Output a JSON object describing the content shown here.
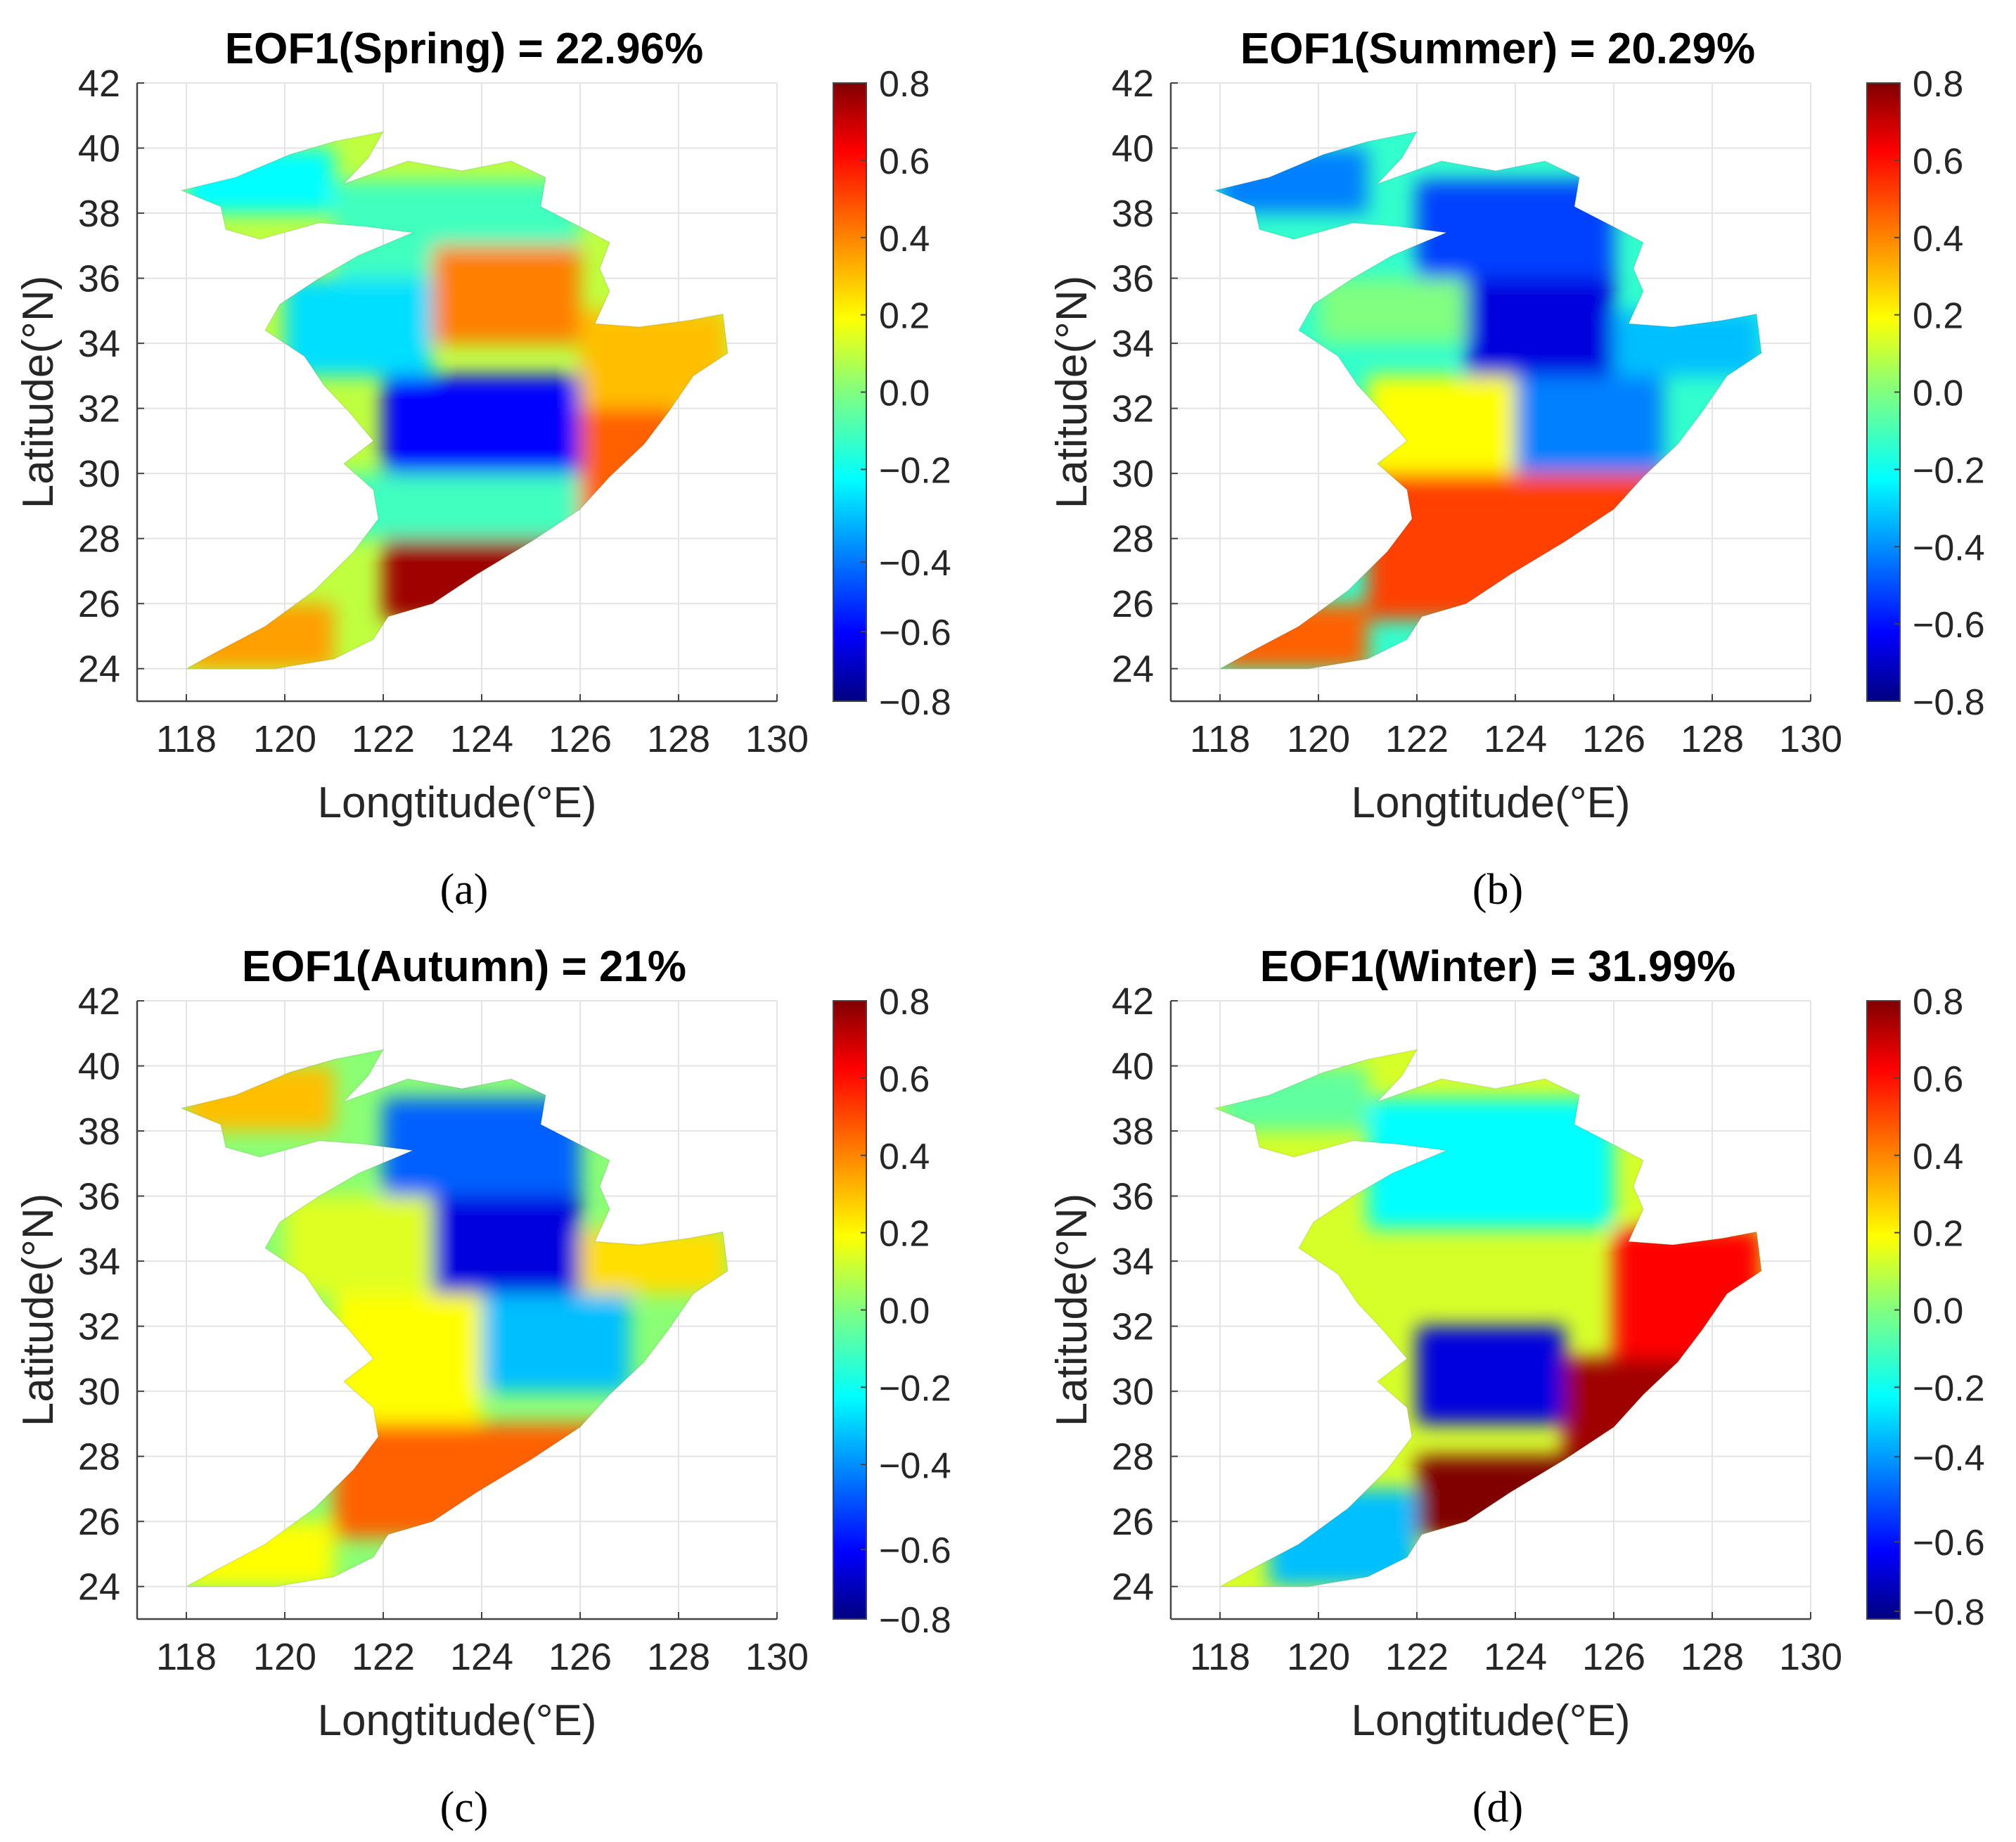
{
  "figure": {
    "panels": [
      {
        "id": "a",
        "label": "(a)",
        "season": "Spring",
        "title": "EOF1(Spring) = 22.96%",
        "colorbar_ticks": [
          "0.8",
          "0.6",
          "0.4",
          "0.2",
          "0.0",
          "−0.2",
          "−0.4",
          "−0.6",
          "−0.8"
        ],
        "colorbar_tick_values": [
          0.8,
          0.6,
          0.4,
          0.2,
          0.0,
          -0.2,
          -0.44,
          -0.62,
          -0.82
        ],
        "regions": [
          {
            "lon": [
              118,
              121
            ],
            "lat": [
              38,
              40
            ],
            "v": -0.2
          },
          {
            "lon": [
              121,
              126
            ],
            "lat": [
              36,
              39
            ],
            "v": -0.1
          },
          {
            "lon": [
              120,
              123
            ],
            "lat": [
              33,
              36
            ],
            "v": -0.25
          },
          {
            "lon": [
              123,
              126
            ],
            "lat": [
              34,
              37
            ],
            "v": 0.4
          },
          {
            "lon": [
              126,
              129
            ],
            "lat": [
              32,
              35
            ],
            "v": 0.3
          },
          {
            "lon": [
              122,
              126
            ],
            "lat": [
              30,
              33
            ],
            "v": -0.6
          },
          {
            "lon": [
              121,
              126
            ],
            "lat": [
              28,
              30
            ],
            "v": -0.1
          },
          {
            "lon": [
              126,
              128
            ],
            "lat": [
              28,
              32
            ],
            "v": 0.45
          },
          {
            "lon": [
              122,
              126
            ],
            "lat": [
              25.5,
              28
            ],
            "v": 0.75
          },
          {
            "lon": [
              118,
              121
            ],
            "lat": [
              24,
              26
            ],
            "v": 0.35
          }
        ]
      },
      {
        "id": "b",
        "label": "(b)",
        "season": "Summer",
        "title": "EOF1(Summer) = 20.29%",
        "colorbar_ticks": [
          "0.8",
          "0.6",
          "0.4",
          "0.2",
          "0.0",
          "−0.2",
          "−0.4",
          "−0.6",
          "−0.8"
        ],
        "colorbar_tick_values": [
          0.8,
          0.6,
          0.4,
          0.2,
          0.0,
          -0.2,
          -0.4,
          -0.6,
          -0.8
        ],
        "regions": [
          {
            "lon": [
              118,
              121
            ],
            "lat": [
              38,
              40
            ],
            "v": -0.4
          },
          {
            "lon": [
              122,
              126
            ],
            "lat": [
              36,
              39
            ],
            "v": -0.5
          },
          {
            "lon": [
              120,
              123
            ],
            "lat": [
              34,
              36
            ],
            "v": 0.0
          },
          {
            "lon": [
              123,
              126
            ],
            "lat": [
              32,
              36
            ],
            "v": -0.65
          },
          {
            "lon": [
              126,
              129
            ],
            "lat": [
              33,
              35
            ],
            "v": -0.3
          },
          {
            "lon": [
              121,
              124
            ],
            "lat": [
              30,
              33
            ],
            "v": 0.2
          },
          {
            "lon": [
              124,
              127
            ],
            "lat": [
              30,
              33
            ],
            "v": -0.4
          },
          {
            "lon": [
              121,
              128
            ],
            "lat": [
              25.5,
              30
            ],
            "v": 0.5
          },
          {
            "lon": [
              118,
              121
            ],
            "lat": [
              24,
              26
            ],
            "v": 0.45
          }
        ]
      },
      {
        "id": "c",
        "label": "(c)",
        "season": "Autumn",
        "title": "EOF1(Autumn) = 21%",
        "colorbar_ticks": [
          "0.8",
          "0.6",
          "0.4",
          "0.2",
          "0.0",
          "−0.2",
          "−0.4",
          "−0.6",
          "−0.8"
        ],
        "colorbar_tick_values": [
          0.8,
          0.6,
          0.4,
          0.2,
          0.0,
          -0.2,
          -0.4,
          -0.62,
          -0.8
        ],
        "regions": [
          {
            "lon": [
              118,
              121
            ],
            "lat": [
              38,
              40
            ],
            "v": 0.3
          },
          {
            "lon": [
              122,
              126
            ],
            "lat": [
              36,
              39
            ],
            "v": -0.45
          },
          {
            "lon": [
              120,
              123
            ],
            "lat": [
              33,
              36
            ],
            "v": 0.15
          },
          {
            "lon": [
              123,
              126
            ],
            "lat": [
              33,
              36
            ],
            "v": -0.65
          },
          {
            "lon": [
              126,
              129
            ],
            "lat": [
              33,
              35
            ],
            "v": 0.25
          },
          {
            "lon": [
              121,
              124
            ],
            "lat": [
              29,
              33
            ],
            "v": 0.2
          },
          {
            "lon": [
              124,
              127
            ],
            "lat": [
              30,
              33
            ],
            "v": -0.3
          },
          {
            "lon": [
              121,
              128
            ],
            "lat": [
              25.5,
              29
            ],
            "v": 0.45
          },
          {
            "lon": [
              118,
              121
            ],
            "lat": [
              24,
              26
            ],
            "v": 0.2
          }
        ]
      },
      {
        "id": "d",
        "label": "(d)",
        "season": "Winter",
        "title": "EOF1(Winter) = 31.99%",
        "colorbar_ticks": [
          "0.8",
          "0.6",
          "0.4",
          "0.2",
          "0.0",
          "−0.2",
          "−0.4",
          "−0.6",
          "−0.8"
        ],
        "colorbar_tick_values": [
          0.8,
          0.6,
          0.4,
          0.2,
          0.0,
          -0.2,
          -0.38,
          -0.6,
          -0.78
        ],
        "regions": [
          {
            "lon": [
              118,
              121
            ],
            "lat": [
              38,
              40
            ],
            "v": -0.05
          },
          {
            "lon": [
              121,
              126
            ],
            "lat": [
              35,
              39
            ],
            "v": -0.2
          },
          {
            "lon": [
              126,
              129
            ],
            "lat": [
              31,
              35
            ],
            "v": 0.6
          },
          {
            "lon": [
              122,
              125
            ],
            "lat": [
              29,
              32
            ],
            "v": -0.65
          },
          {
            "lon": [
              125,
              128
            ],
            "lat": [
              28,
              31
            ],
            "v": 0.75
          },
          {
            "lon": [
              122,
              126
            ],
            "lat": [
              25.5,
              28
            ],
            "v": 0.8
          },
          {
            "lon": [
              119,
              122
            ],
            "lat": [
              24,
              27
            ],
            "v": -0.3
          }
        ]
      }
    ]
  },
  "chart_data": [
    {
      "type": "heatmap",
      "title": "EOF1(Spring) = 22.96%",
      "xlabel": "Longtitude(°E)",
      "ylabel": "Latitude(°N)",
      "xlim": [
        117,
        130
      ],
      "ylim": [
        23,
        42
      ],
      "xticks": [
        118,
        120,
        122,
        124,
        126,
        128,
        130
      ],
      "yticks": [
        24,
        26,
        28,
        30,
        32,
        34,
        36,
        38,
        40,
        42
      ],
      "color_range": [
        -0.8,
        0.8
      ],
      "colormap": "jet"
    },
    {
      "type": "heatmap",
      "title": "EOF1(Summer) = 20.29%",
      "xlabel": "Longtitude(°E)",
      "ylabel": "Latitude(°N)",
      "xlim": [
        117,
        130
      ],
      "ylim": [
        23,
        42
      ],
      "xticks": [
        118,
        120,
        122,
        124,
        126,
        128,
        130
      ],
      "yticks": [
        24,
        26,
        28,
        30,
        32,
        34,
        36,
        38,
        40,
        42
      ],
      "color_range": [
        -0.8,
        0.8
      ],
      "colormap": "jet"
    },
    {
      "type": "heatmap",
      "title": "EOF1(Autumn) = 21%",
      "xlabel": "Longtitude(°E)",
      "ylabel": "Latitude(°N)",
      "xlim": [
        117,
        130
      ],
      "ylim": [
        23,
        42
      ],
      "xticks": [
        118,
        120,
        122,
        124,
        126,
        128,
        130
      ],
      "yticks": [
        24,
        26,
        28,
        30,
        32,
        34,
        36,
        38,
        40,
        42
      ],
      "color_range": [
        -0.8,
        0.8
      ],
      "colormap": "jet"
    },
    {
      "type": "heatmap",
      "title": "EOF1(Winter) = 31.99%",
      "xlabel": "Longtitude(°E)",
      "ylabel": "Latitude(°N)",
      "xlim": [
        117,
        130
      ],
      "ylim": [
        23,
        42
      ],
      "xticks": [
        118,
        120,
        122,
        124,
        126,
        128,
        130
      ],
      "yticks": [
        24,
        26,
        28,
        30,
        32,
        34,
        36,
        38,
        40,
        42
      ],
      "color_range": [
        -0.8,
        0.8
      ],
      "colormap": "jet"
    }
  ],
  "colors": {
    "grid": "#e4e4e4",
    "axis": "#444444",
    "text": "#262626"
  }
}
